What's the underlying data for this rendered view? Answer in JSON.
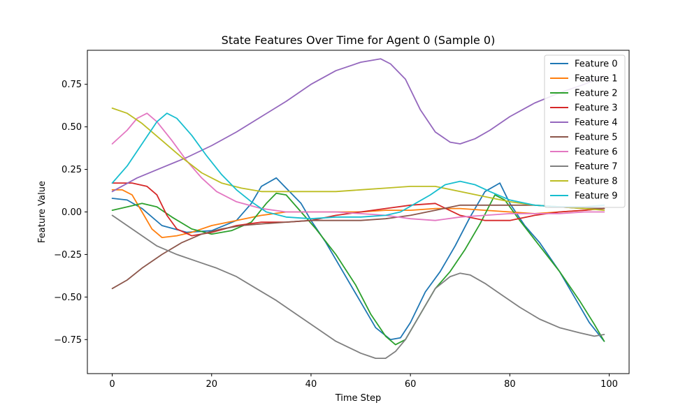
{
  "chart_data": {
    "type": "line",
    "title": "State Features Over Time for Agent 0 (Sample 0)",
    "xlabel": "Time Step",
    "ylabel": "Feature Value",
    "xlim": [
      -5,
      104
    ],
    "ylim": [
      -0.95,
      0.95
    ],
    "xticks": [
      0,
      20,
      40,
      60,
      80,
      100
    ],
    "yticks": [
      -0.75,
      -0.5,
      -0.25,
      0.0,
      0.25,
      0.5,
      0.75
    ],
    "ytick_labels": [
      "−0.75",
      "−0.50",
      "−0.25",
      "0.00",
      "0.25",
      "0.50",
      "0.75"
    ],
    "grid": false,
    "legend_position": "top-right",
    "series": [
      {
        "name": "Feature 0",
        "color": "#1f77b4",
        "points": [
          [
            0,
            0.08
          ],
          [
            3,
            0.07
          ],
          [
            6,
            0.02
          ],
          [
            10,
            -0.08
          ],
          [
            15,
            -0.12
          ],
          [
            20,
            -0.11
          ],
          [
            25,
            -0.05
          ],
          [
            28,
            0.05
          ],
          [
            30,
            0.15
          ],
          [
            33,
            0.2
          ],
          [
            35,
            0.14
          ],
          [
            38,
            0.05
          ],
          [
            40,
            -0.05
          ],
          [
            43,
            -0.18
          ],
          [
            46,
            -0.33
          ],
          [
            50,
            -0.53
          ],
          [
            53,
            -0.68
          ],
          [
            56,
            -0.75
          ],
          [
            58,
            -0.74
          ],
          [
            60,
            -0.65
          ],
          [
            63,
            -0.47
          ],
          [
            66,
            -0.35
          ],
          [
            69,
            -0.2
          ],
          [
            72,
            -0.03
          ],
          [
            75,
            0.12
          ],
          [
            78,
            0.17
          ],
          [
            80,
            0.05
          ],
          [
            83,
            -0.08
          ],
          [
            86,
            -0.18
          ],
          [
            90,
            -0.35
          ],
          [
            93,
            -0.5
          ],
          [
            96,
            -0.65
          ],
          [
            99,
            -0.76
          ]
        ]
      },
      {
        "name": "Feature 1",
        "color": "#ff7f0e",
        "points": [
          [
            0,
            0.13
          ],
          [
            2,
            0.13
          ],
          [
            4,
            0.1
          ],
          [
            6,
            0.0
          ],
          [
            8,
            -0.1
          ],
          [
            10,
            -0.15
          ],
          [
            13,
            -0.14
          ],
          [
            16,
            -0.12
          ],
          [
            20,
            -0.08
          ],
          [
            25,
            -0.05
          ],
          [
            30,
            -0.02
          ],
          [
            35,
            0.0
          ],
          [
            40,
            0.0
          ],
          [
            45,
            0.0
          ],
          [
            50,
            0.0
          ],
          [
            55,
            0.01
          ],
          [
            60,
            0.01
          ],
          [
            65,
            0.02
          ],
          [
            70,
            0.02
          ],
          [
            75,
            0.01
          ],
          [
            80,
            0.0
          ],
          [
            85,
            -0.01
          ],
          [
            90,
            0.0
          ],
          [
            95,
            0.01
          ],
          [
            99,
            0.02
          ]
        ]
      },
      {
        "name": "Feature 2",
        "color": "#2ca02c",
        "points": [
          [
            0,
            0.01
          ],
          [
            3,
            0.03
          ],
          [
            6,
            0.05
          ],
          [
            9,
            0.03
          ],
          [
            12,
            -0.03
          ],
          [
            16,
            -0.1
          ],
          [
            20,
            -0.13
          ],
          [
            24,
            -0.11
          ],
          [
            28,
            -0.06
          ],
          [
            31,
            0.05
          ],
          [
            33,
            0.11
          ],
          [
            35,
            0.1
          ],
          [
            38,
            0.0
          ],
          [
            41,
            -0.1
          ],
          [
            45,
            -0.25
          ],
          [
            49,
            -0.43
          ],
          [
            52,
            -0.6
          ],
          [
            55,
            -0.73
          ],
          [
            57,
            -0.78
          ],
          [
            59,
            -0.75
          ],
          [
            62,
            -0.6
          ],
          [
            65,
            -0.45
          ],
          [
            68,
            -0.35
          ],
          [
            71,
            -0.22
          ],
          [
            74,
            -0.07
          ],
          [
            77,
            0.1
          ],
          [
            79,
            0.07
          ],
          [
            82,
            -0.05
          ],
          [
            86,
            -0.2
          ],
          [
            90,
            -0.35
          ],
          [
            94,
            -0.52
          ],
          [
            97,
            -0.66
          ],
          [
            99,
            -0.76
          ]
        ]
      },
      {
        "name": "Feature 3",
        "color": "#d62728",
        "points": [
          [
            0,
            0.17
          ],
          [
            4,
            0.17
          ],
          [
            7,
            0.15
          ],
          [
            9,
            0.1
          ],
          [
            11,
            -0.02
          ],
          [
            13,
            -0.1
          ],
          [
            16,
            -0.14
          ],
          [
            20,
            -0.12
          ],
          [
            25,
            -0.08
          ],
          [
            30,
            -0.06
          ],
          [
            35,
            -0.06
          ],
          [
            40,
            -0.05
          ],
          [
            45,
            -0.02
          ],
          [
            50,
            0.0
          ],
          [
            55,
            0.02
          ],
          [
            60,
            0.04
          ],
          [
            65,
            0.05
          ],
          [
            70,
            -0.02
          ],
          [
            75,
            -0.05
          ],
          [
            80,
            -0.05
          ],
          [
            85,
            -0.02
          ],
          [
            90,
            0.0
          ],
          [
            95,
            0.01
          ],
          [
            99,
            0.02
          ]
        ]
      },
      {
        "name": "Feature 4",
        "color": "#9467bd",
        "points": [
          [
            0,
            0.12
          ],
          [
            5,
            0.2
          ],
          [
            10,
            0.26
          ],
          [
            15,
            0.32
          ],
          [
            20,
            0.39
          ],
          [
            25,
            0.47
          ],
          [
            30,
            0.56
          ],
          [
            35,
            0.65
          ],
          [
            40,
            0.75
          ],
          [
            45,
            0.83
          ],
          [
            50,
            0.88
          ],
          [
            54,
            0.9
          ],
          [
            56,
            0.87
          ],
          [
            59,
            0.78
          ],
          [
            62,
            0.6
          ],
          [
            65,
            0.47
          ],
          [
            68,
            0.41
          ],
          [
            70,
            0.4
          ],
          [
            73,
            0.43
          ],
          [
            76,
            0.48
          ],
          [
            80,
            0.56
          ],
          [
            85,
            0.64
          ],
          [
            90,
            0.7
          ],
          [
            95,
            0.75
          ],
          [
            99,
            0.8
          ]
        ]
      },
      {
        "name": "Feature 5",
        "color": "#8c564b",
        "points": [
          [
            0,
            -0.45
          ],
          [
            3,
            -0.4
          ],
          [
            6,
            -0.33
          ],
          [
            10,
            -0.25
          ],
          [
            14,
            -0.18
          ],
          [
            18,
            -0.13
          ],
          [
            22,
            -0.1
          ],
          [
            26,
            -0.08
          ],
          [
            30,
            -0.07
          ],
          [
            35,
            -0.06
          ],
          [
            40,
            -0.05
          ],
          [
            45,
            -0.05
          ],
          [
            50,
            -0.05
          ],
          [
            55,
            -0.04
          ],
          [
            60,
            -0.02
          ],
          [
            65,
            0.01
          ],
          [
            70,
            0.04
          ],
          [
            75,
            0.04
          ],
          [
            80,
            0.04
          ],
          [
            85,
            0.04
          ],
          [
            90,
            0.03
          ],
          [
            95,
            0.02
          ],
          [
            99,
            0.02
          ]
        ]
      },
      {
        "name": "Feature 6",
        "color": "#e377c2",
        "points": [
          [
            0,
            0.4
          ],
          [
            3,
            0.48
          ],
          [
            5,
            0.55
          ],
          [
            7,
            0.58
          ],
          [
            9,
            0.53
          ],
          [
            12,
            0.42
          ],
          [
            15,
            0.3
          ],
          [
            18,
            0.2
          ],
          [
            21,
            0.12
          ],
          [
            25,
            0.06
          ],
          [
            30,
            0.02
          ],
          [
            35,
            0.0
          ],
          [
            40,
            0.0
          ],
          [
            45,
            0.0
          ],
          [
            50,
            -0.01
          ],
          [
            55,
            -0.02
          ],
          [
            60,
            -0.04
          ],
          [
            65,
            -0.05
          ],
          [
            70,
            -0.03
          ],
          [
            75,
            -0.02
          ],
          [
            80,
            -0.01
          ],
          [
            85,
            -0.01
          ],
          [
            90,
            -0.01
          ],
          [
            95,
            0.0
          ],
          [
            99,
            0.0
          ]
        ]
      },
      {
        "name": "Feature 7",
        "color": "#7f7f7f",
        "points": [
          [
            0,
            -0.02
          ],
          [
            3,
            -0.08
          ],
          [
            6,
            -0.14
          ],
          [
            9,
            -0.2
          ],
          [
            13,
            -0.25
          ],
          [
            17,
            -0.29
          ],
          [
            21,
            -0.33
          ],
          [
            25,
            -0.38
          ],
          [
            29,
            -0.45
          ],
          [
            33,
            -0.52
          ],
          [
            37,
            -0.6
          ],
          [
            41,
            -0.68
          ],
          [
            45,
            -0.76
          ],
          [
            50,
            -0.83
          ],
          [
            53,
            -0.86
          ],
          [
            55,
            -0.86
          ],
          [
            57,
            -0.82
          ],
          [
            59,
            -0.75
          ],
          [
            62,
            -0.6
          ],
          [
            65,
            -0.45
          ],
          [
            68,
            -0.38
          ],
          [
            70,
            -0.36
          ],
          [
            72,
            -0.37
          ],
          [
            75,
            -0.42
          ],
          [
            78,
            -0.48
          ],
          [
            82,
            -0.56
          ],
          [
            86,
            -0.63
          ],
          [
            90,
            -0.68
          ],
          [
            94,
            -0.71
          ],
          [
            97,
            -0.73
          ],
          [
            99,
            -0.72
          ]
        ]
      },
      {
        "name": "Feature 8",
        "color": "#bcbd22",
        "points": [
          [
            0,
            0.61
          ],
          [
            3,
            0.58
          ],
          [
            6,
            0.52
          ],
          [
            10,
            0.42
          ],
          [
            14,
            0.32
          ],
          [
            18,
            0.23
          ],
          [
            22,
            0.17
          ],
          [
            26,
            0.14
          ],
          [
            30,
            0.12
          ],
          [
            35,
            0.12
          ],
          [
            40,
            0.12
          ],
          [
            45,
            0.12
          ],
          [
            50,
            0.13
          ],
          [
            55,
            0.14
          ],
          [
            60,
            0.15
          ],
          [
            65,
            0.15
          ],
          [
            70,
            0.12
          ],
          [
            75,
            0.09
          ],
          [
            80,
            0.06
          ],
          [
            85,
            0.04
          ],
          [
            90,
            0.03
          ],
          [
            95,
            0.02
          ],
          [
            99,
            0.01
          ]
        ]
      },
      {
        "name": "Feature 9",
        "color": "#17becf",
        "points": [
          [
            0,
            0.17
          ],
          [
            3,
            0.27
          ],
          [
            6,
            0.4
          ],
          [
            9,
            0.53
          ],
          [
            11,
            0.58
          ],
          [
            13,
            0.55
          ],
          [
            16,
            0.45
          ],
          [
            19,
            0.33
          ],
          [
            22,
            0.22
          ],
          [
            25,
            0.13
          ],
          [
            28,
            0.06
          ],
          [
            31,
            0.0
          ],
          [
            35,
            -0.03
          ],
          [
            40,
            -0.04
          ],
          [
            45,
            -0.03
          ],
          [
            50,
            -0.03
          ],
          [
            55,
            -0.02
          ],
          [
            58,
            0.0
          ],
          [
            61,
            0.05
          ],
          [
            64,
            0.1
          ],
          [
            67,
            0.16
          ],
          [
            70,
            0.18
          ],
          [
            73,
            0.16
          ],
          [
            76,
            0.12
          ],
          [
            80,
            0.07
          ],
          [
            85,
            0.04
          ],
          [
            90,
            0.03
          ],
          [
            95,
            0.03
          ],
          [
            99,
            0.04
          ]
        ]
      }
    ]
  }
}
